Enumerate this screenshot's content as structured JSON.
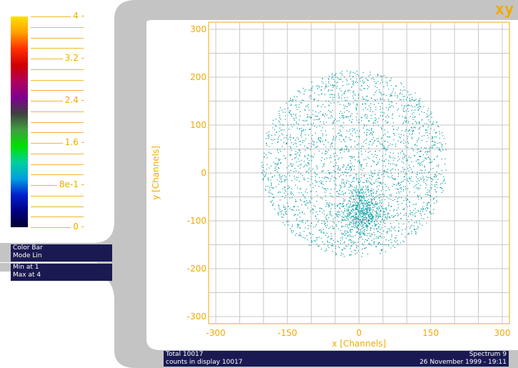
{
  "app": {
    "logo": "xy"
  },
  "colorbar": {
    "labels": [
      {
        "text": "4",
        "value": 4
      },
      {
        "text": "3.2",
        "value": 3.2
      },
      {
        "text": "2.4",
        "value": 2.4
      },
      {
        "text": "1.6",
        "value": 1.6
      },
      {
        "text": "8e-1",
        "value": 0.8
      },
      {
        "text": "0",
        "value": 0
      }
    ],
    "gradient": [
      "#ffe000",
      "#ffa000",
      "#ff3000",
      "#d00000",
      "#b0005a",
      "#800090",
      "#404040",
      "#40a040",
      "#00e000",
      "#00d0a0",
      "#00a0e0",
      "#0020d0",
      "#000080",
      "#000030"
    ]
  },
  "info_panels": {
    "colorbar_mode": {
      "line1": "Color Bar",
      "line2": "Mode Lin"
    },
    "range": {
      "line1": "Min at 1",
      "line2": "Max at 4"
    }
  },
  "footer": {
    "total": "Total 10017",
    "counts": "counts in display 10017",
    "spectrum": "Spectrum 9",
    "timestamp": "26 November 1999 - 19:11"
  },
  "colors": {
    "accent": "#f2a900",
    "points": "#009aa0",
    "grid": "#c8c8c8",
    "panel": "#1a1a52",
    "frame": "#c4c4c4"
  },
  "chart_data": {
    "type": "scatter",
    "xlabel": "x [Channels]",
    "ylabel": "y [Channels]",
    "xlim": [
      -300,
      300
    ],
    "ylim": [
      -300,
      300
    ],
    "xticks": [
      -300,
      -150,
      0,
      150,
      300
    ],
    "yticks": [
      300,
      200,
      100,
      0,
      -100,
      -200,
      -300
    ],
    "grid": true,
    "total_points": 10017,
    "clusters": [
      {
        "name": "disk",
        "cx": -10,
        "cy": 20,
        "r": 195,
        "density": "uniform"
      },
      {
        "name": "core",
        "cx": 5,
        "cy": -80,
        "sx": 22,
        "sy": 30,
        "density": "gaussian"
      }
    ]
  }
}
